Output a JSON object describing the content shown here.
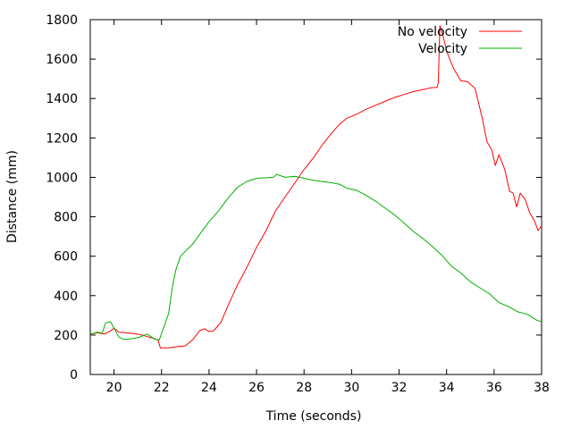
{
  "chart_data": {
    "type": "line",
    "title": "",
    "xlabel": "Time (seconds)",
    "ylabel": "Distance (mm)",
    "xlim": [
      19,
      38
    ],
    "ylim": [
      0,
      1800
    ],
    "x_ticks": [
      "20",
      "22",
      "24",
      "26",
      "28",
      "30",
      "32",
      "34",
      "36",
      "38"
    ],
    "y_ticks": [
      "0",
      "200",
      "400",
      "600",
      "800",
      "1000",
      "1200",
      "1400",
      "1600",
      "1800"
    ],
    "grid": false,
    "legend_position": "top-right",
    "series": [
      {
        "name": "No velocity",
        "color": "#ff0000",
        "points": [
          [
            19.0,
            205
          ],
          [
            19.3,
            212
          ],
          [
            19.6,
            205
          ],
          [
            19.9,
            225
          ],
          [
            20.0,
            235
          ],
          [
            20.2,
            215
          ],
          [
            20.5,
            212
          ],
          [
            20.8,
            208
          ],
          [
            21.1,
            202
          ],
          [
            21.4,
            192
          ],
          [
            21.7,
            182
          ],
          [
            21.85,
            175
          ],
          [
            21.95,
            135
          ],
          [
            22.3,
            135
          ],
          [
            22.7,
            142
          ],
          [
            23.0,
            145
          ],
          [
            23.3,
            175
          ],
          [
            23.6,
            222
          ],
          [
            23.8,
            232
          ],
          [
            24.0,
            218
          ],
          [
            24.2,
            222
          ],
          [
            24.5,
            265
          ],
          [
            24.8,
            350
          ],
          [
            25.2,
            455
          ],
          [
            25.6,
            545
          ],
          [
            26.0,
            645
          ],
          [
            26.4,
            730
          ],
          [
            26.8,
            830
          ],
          [
            27.2,
            900
          ],
          [
            27.6,
            970
          ],
          [
            28.0,
            1040
          ],
          [
            28.4,
            1100
          ],
          [
            28.8,
            1170
          ],
          [
            29.2,
            1230
          ],
          [
            29.5,
            1270
          ],
          [
            29.8,
            1300
          ],
          [
            30.2,
            1320
          ],
          [
            30.6,
            1345
          ],
          [
            31.0,
            1365
          ],
          [
            31.4,
            1385
          ],
          [
            31.8,
            1405
          ],
          [
            32.2,
            1420
          ],
          [
            32.6,
            1435
          ],
          [
            33.0,
            1445
          ],
          [
            33.35,
            1455
          ],
          [
            33.6,
            1457
          ],
          [
            33.65,
            1480
          ],
          [
            33.72,
            1770
          ],
          [
            33.85,
            1720
          ],
          [
            34.0,
            1640
          ],
          [
            34.3,
            1550
          ],
          [
            34.6,
            1490
          ],
          [
            34.9,
            1485
          ],
          [
            35.2,
            1450
          ],
          [
            35.5,
            1300
          ],
          [
            35.7,
            1180
          ],
          [
            35.9,
            1140
          ],
          [
            36.05,
            1060
          ],
          [
            36.2,
            1115
          ],
          [
            36.45,
            1040
          ],
          [
            36.65,
            930
          ],
          [
            36.8,
            920
          ],
          [
            36.95,
            850
          ],
          [
            37.1,
            920
          ],
          [
            37.3,
            890
          ],
          [
            37.5,
            820
          ],
          [
            37.7,
            780
          ],
          [
            37.85,
            730
          ],
          [
            38.0,
            755
          ]
        ]
      },
      {
        "name": "Velocity",
        "color": "#00b000",
        "points": [
          [
            19.0,
            205
          ],
          [
            19.3,
            215
          ],
          [
            19.5,
            210
          ],
          [
            19.65,
            262
          ],
          [
            19.85,
            268
          ],
          [
            20.0,
            235
          ],
          [
            20.2,
            190
          ],
          [
            20.4,
            178
          ],
          [
            20.8,
            182
          ],
          [
            21.1,
            190
          ],
          [
            21.4,
            205
          ],
          [
            21.7,
            180
          ],
          [
            21.9,
            175
          ],
          [
            22.1,
            240
          ],
          [
            22.3,
            310
          ],
          [
            22.45,
            440
          ],
          [
            22.6,
            530
          ],
          [
            22.8,
            600
          ],
          [
            23.0,
            625
          ],
          [
            23.3,
            660
          ],
          [
            23.6,
            710
          ],
          [
            24.0,
            775
          ],
          [
            24.4,
            830
          ],
          [
            24.8,
            895
          ],
          [
            25.2,
            950
          ],
          [
            25.6,
            980
          ],
          [
            26.0,
            995
          ],
          [
            26.4,
            998
          ],
          [
            26.7,
            1000
          ],
          [
            26.85,
            1015
          ],
          [
            27.2,
            1000
          ],
          [
            27.6,
            1005
          ],
          [
            28.0,
            995
          ],
          [
            28.4,
            985
          ],
          [
            28.8,
            978
          ],
          [
            29.2,
            972
          ],
          [
            29.5,
            965
          ],
          [
            29.8,
            945
          ],
          [
            30.2,
            935
          ],
          [
            30.6,
            910
          ],
          [
            31.0,
            880
          ],
          [
            31.4,
            845
          ],
          [
            31.8,
            810
          ],
          [
            32.2,
            770
          ],
          [
            32.6,
            725
          ],
          [
            33.0,
            690
          ],
          [
            33.4,
            650
          ],
          [
            33.8,
            605
          ],
          [
            34.2,
            550
          ],
          [
            34.6,
            515
          ],
          [
            35.0,
            470
          ],
          [
            35.4,
            440
          ],
          [
            35.8,
            410
          ],
          [
            36.2,
            365
          ],
          [
            36.6,
            345
          ],
          [
            37.0,
            318
          ],
          [
            37.4,
            305
          ],
          [
            37.8,
            275
          ],
          [
            38.0,
            268
          ]
        ]
      }
    ]
  }
}
